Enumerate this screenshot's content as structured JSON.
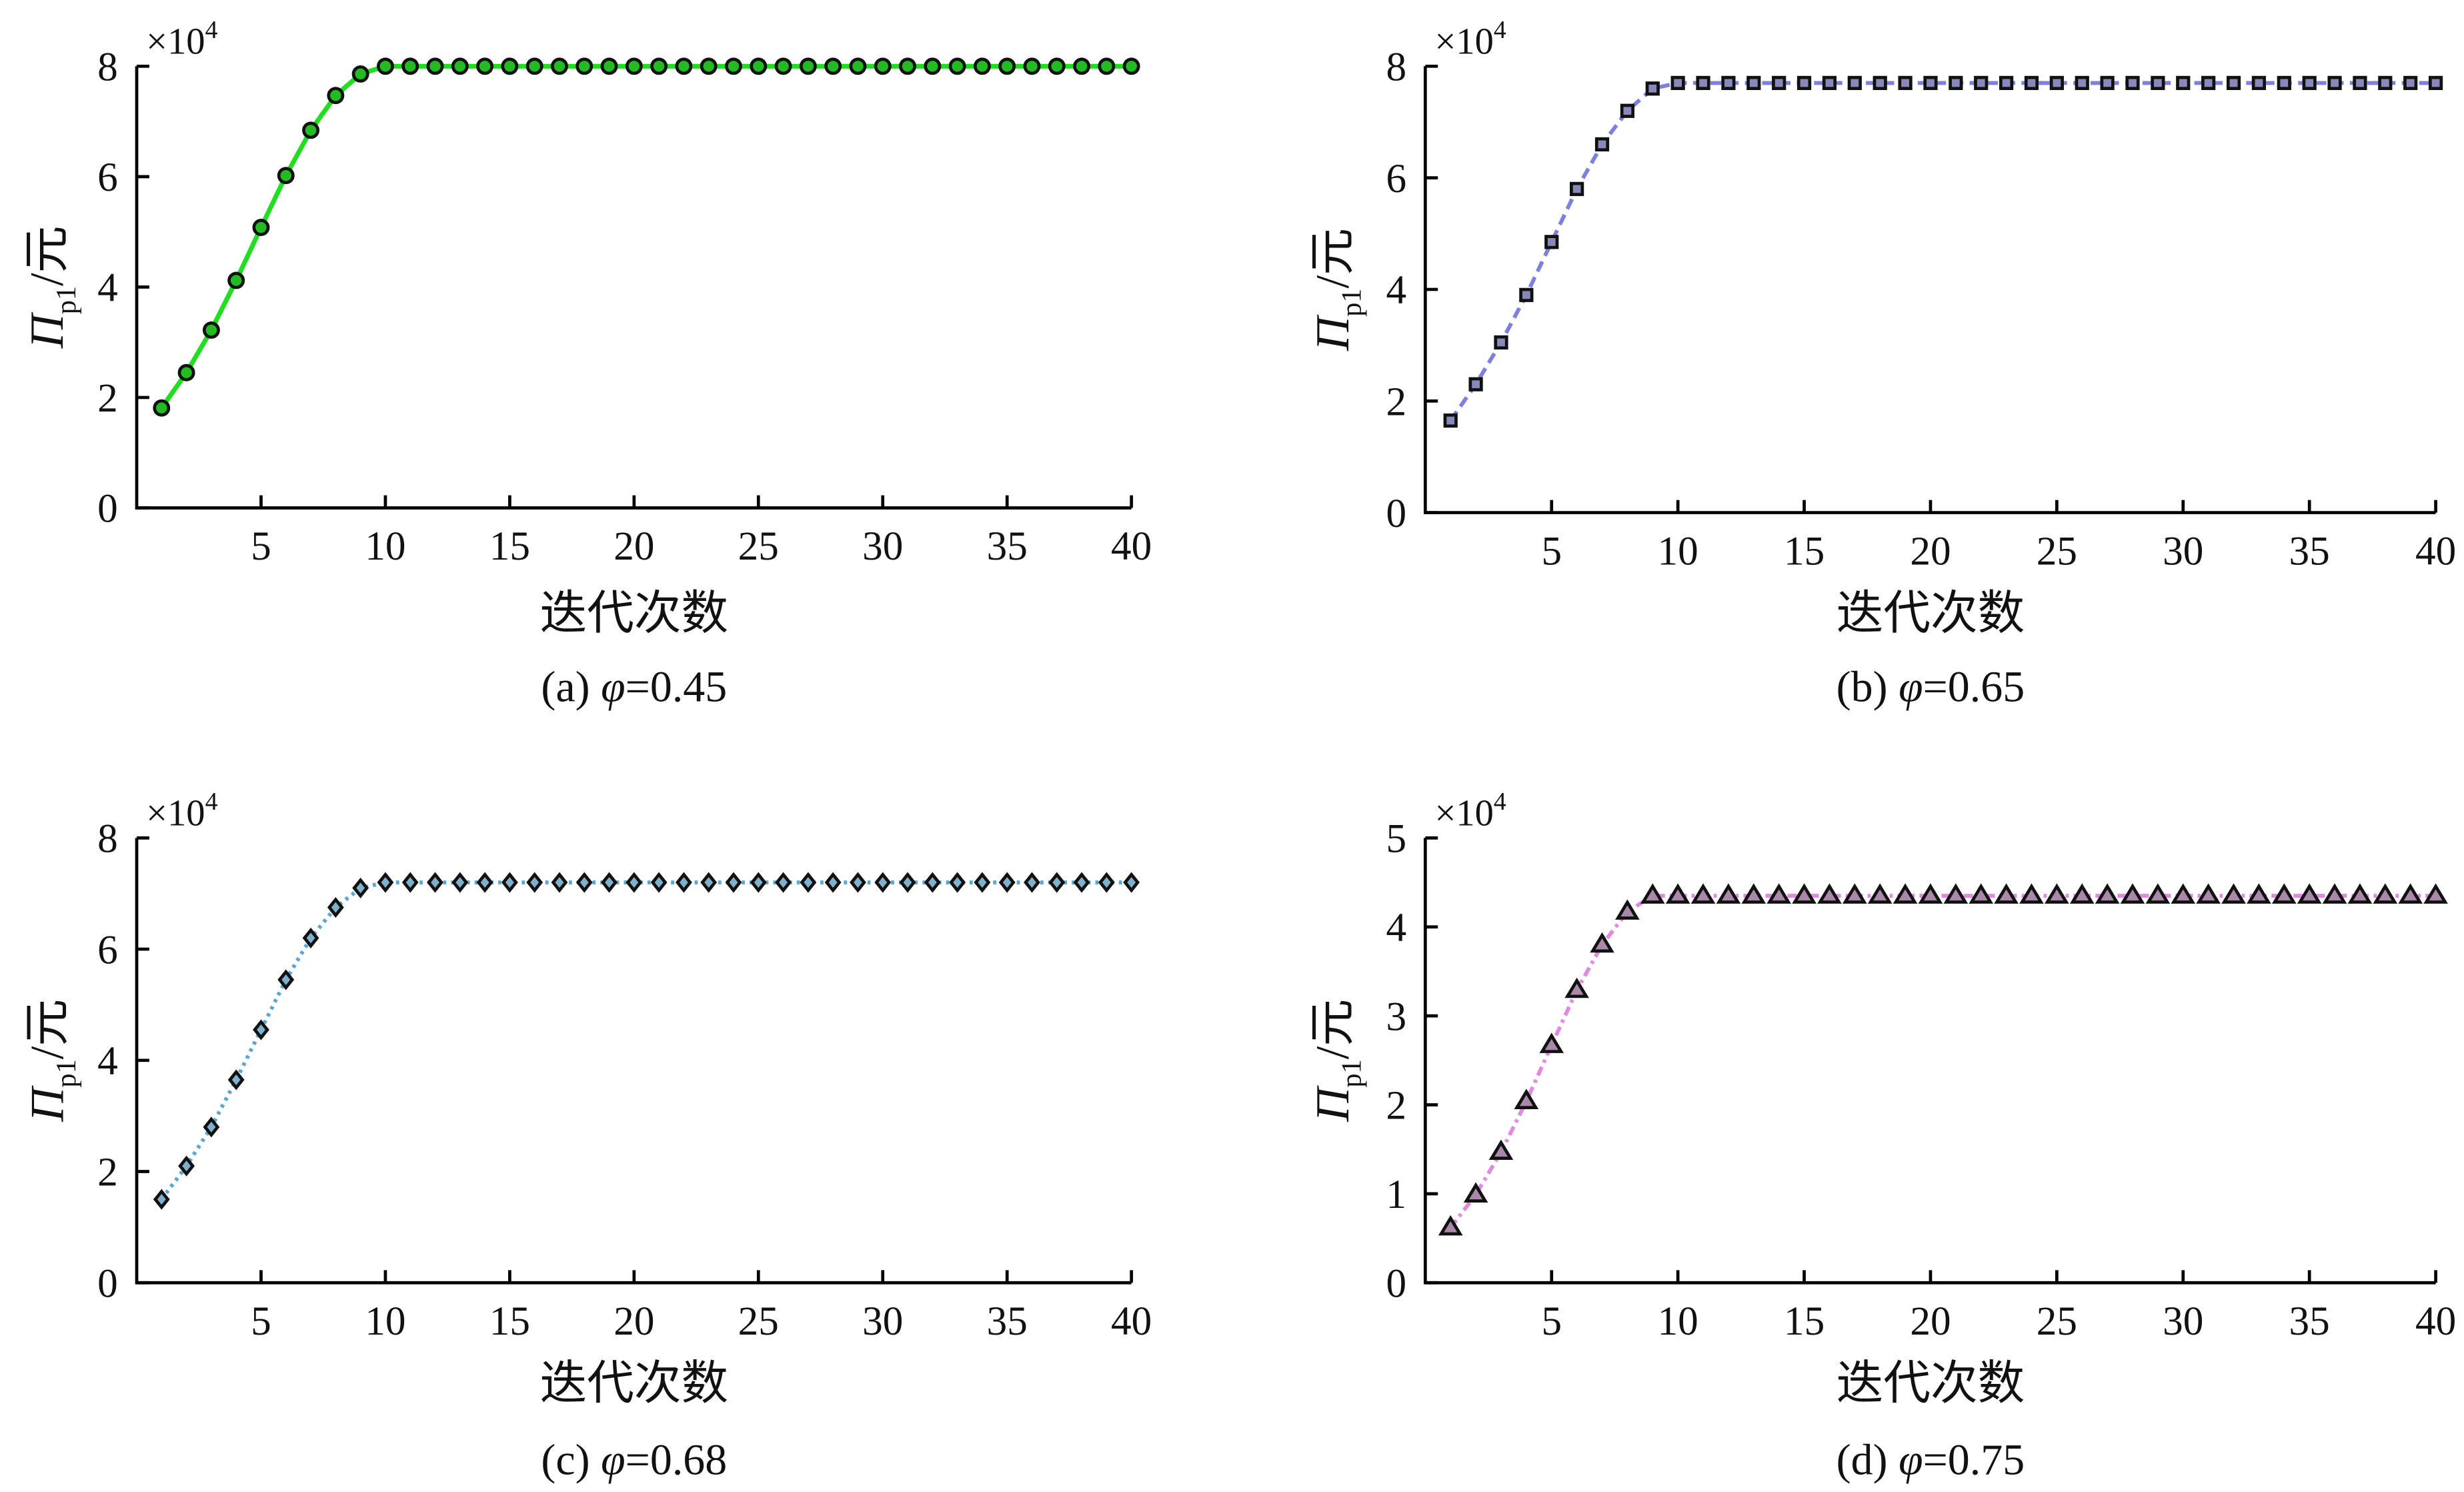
{
  "chart_data": [
    {
      "type": "line",
      "caption": {
        "prefix": "(a) ",
        "symbol": "φ",
        "value": "=0.45"
      },
      "xlabel": "迭代次数",
      "ylabel": {
        "main": "Π",
        "sub": "p1",
        "unit": "/元"
      },
      "multiplier": {
        "base": "×10",
        "exp": "4"
      },
      "xlim": [
        0,
        40
      ],
      "ylim": [
        0,
        8
      ],
      "xticks": [
        5,
        10,
        15,
        20,
        25,
        30,
        35,
        40
      ],
      "yticks": [
        0,
        2,
        4,
        6,
        8
      ],
      "marker": "circle",
      "line_style": "solid",
      "line_color": "#22dd22",
      "marker_fill": "#22bb22",
      "x": [
        1,
        2,
        3,
        4,
        5,
        6,
        7,
        8,
        9,
        10,
        11,
        12,
        13,
        14,
        15,
        16,
        17,
        18,
        19,
        20,
        21,
        22,
        23,
        24,
        25,
        26,
        27,
        28,
        29,
        30,
        31,
        32,
        33,
        34,
        35,
        36,
        37,
        38,
        39,
        40
      ],
      "y": [
        1.81,
        2.45,
        3.22,
        4.12,
        5.08,
        6.02,
        6.84,
        7.47,
        7.86,
        8.0,
        8.0,
        8.0,
        8.0,
        8.0,
        8.0,
        8.0,
        8.0,
        8.0,
        8.0,
        8.0,
        8.0,
        8.0,
        8.0,
        8.0,
        8.0,
        8.0,
        8.0,
        8.0,
        8.0,
        8.0,
        8.0,
        8.0,
        8.0,
        8.0,
        8.0,
        8.0,
        8.0,
        8.0,
        8.0,
        8.0
      ]
    },
    {
      "type": "line",
      "caption": {
        "prefix": "(b) ",
        "symbol": "φ",
        "value": "=0.65"
      },
      "xlabel": "迭代次数",
      "ylabel": {
        "main": "Π",
        "sub": "p1",
        "unit": "/元"
      },
      "multiplier": {
        "base": "×10",
        "exp": "4"
      },
      "xlim": [
        0,
        40
      ],
      "ylim": [
        0,
        8
      ],
      "xticks": [
        5,
        10,
        15,
        20,
        25,
        30,
        35,
        40
      ],
      "yticks": [
        0,
        2,
        4,
        6,
        8
      ],
      "marker": "square",
      "line_style": "dashed",
      "line_color": "#7f7fdd",
      "marker_fill": "#8888bb",
      "x": [
        1,
        2,
        3,
        4,
        5,
        6,
        7,
        8,
        9,
        10,
        11,
        12,
        13,
        14,
        15,
        16,
        17,
        18,
        19,
        20,
        21,
        22,
        23,
        24,
        25,
        26,
        27,
        28,
        29,
        30,
        31,
        32,
        33,
        34,
        35,
        36,
        37,
        38,
        39,
        40
      ],
      "y": [
        1.65,
        2.3,
        3.05,
        3.9,
        4.85,
        5.8,
        6.6,
        7.2,
        7.6,
        7.7,
        7.7,
        7.7,
        7.7,
        7.7,
        7.7,
        7.7,
        7.7,
        7.7,
        7.7,
        7.7,
        7.7,
        7.7,
        7.7,
        7.7,
        7.7,
        7.7,
        7.7,
        7.7,
        7.7,
        7.7,
        7.7,
        7.7,
        7.7,
        7.7,
        7.7,
        7.7,
        7.7,
        7.7,
        7.7,
        7.7
      ]
    },
    {
      "type": "line",
      "caption": {
        "prefix": "(c) ",
        "symbol": "φ",
        "value": "=0.68"
      },
      "xlabel": "迭代次数",
      "ylabel": {
        "main": "Π",
        "sub": "p1",
        "unit": "/元"
      },
      "multiplier": {
        "base": "×10",
        "exp": "4"
      },
      "xlim": [
        0,
        40
      ],
      "ylim": [
        0,
        8
      ],
      "xticks": [
        5,
        10,
        15,
        20,
        25,
        30,
        35,
        40
      ],
      "yticks": [
        0,
        2,
        4,
        6,
        8
      ],
      "marker": "diamond",
      "line_style": "dotted",
      "line_color": "#5aa8d0",
      "marker_fill": "#7fb0cc",
      "x": [
        1,
        2,
        3,
        4,
        5,
        6,
        7,
        8,
        9,
        10,
        11,
        12,
        13,
        14,
        15,
        16,
        17,
        18,
        19,
        20,
        21,
        22,
        23,
        24,
        25,
        26,
        27,
        28,
        29,
        30,
        31,
        32,
        33,
        34,
        35,
        36,
        37,
        38,
        39,
        40
      ],
      "y": [
        1.5,
        2.1,
        2.8,
        3.65,
        4.55,
        5.45,
        6.2,
        6.75,
        7.1,
        7.2,
        7.2,
        7.2,
        7.2,
        7.2,
        7.2,
        7.2,
        7.2,
        7.2,
        7.2,
        7.2,
        7.2,
        7.2,
        7.2,
        7.2,
        7.2,
        7.2,
        7.2,
        7.2,
        7.2,
        7.2,
        7.2,
        7.2,
        7.2,
        7.2,
        7.2,
        7.2,
        7.2,
        7.2,
        7.2,
        7.2
      ]
    },
    {
      "type": "line",
      "caption": {
        "prefix": "(d) ",
        "symbol": "φ",
        "value": "=0.75"
      },
      "xlabel": "迭代次数",
      "ylabel": {
        "main": "Π",
        "sub": "p1",
        "unit": "/元"
      },
      "multiplier": {
        "base": "×10",
        "exp": "4"
      },
      "xlim": [
        0,
        40
      ],
      "ylim": [
        0,
        5
      ],
      "xticks": [
        5,
        10,
        15,
        20,
        25,
        30,
        35,
        40
      ],
      "yticks": [
        0,
        1,
        2,
        3,
        4,
        5
      ],
      "marker": "triangle",
      "line_style": "dashdot",
      "line_color": "#e08ae0",
      "marker_fill": "#aa88aa",
      "x": [
        1,
        2,
        3,
        4,
        5,
        6,
        7,
        8,
        9,
        10,
        11,
        12,
        13,
        14,
        15,
        16,
        17,
        18,
        19,
        20,
        21,
        22,
        23,
        24,
        25,
        26,
        27,
        28,
        29,
        30,
        31,
        32,
        33,
        34,
        35,
        36,
        37,
        38,
        39,
        40
      ],
      "y": [
        0.62,
        0.99,
        1.47,
        2.04,
        2.67,
        3.29,
        3.8,
        4.17,
        4.35,
        4.35,
        4.35,
        4.35,
        4.35,
        4.35,
        4.35,
        4.35,
        4.35,
        4.35,
        4.35,
        4.35,
        4.35,
        4.35,
        4.35,
        4.35,
        4.35,
        4.35,
        4.35,
        4.35,
        4.35,
        4.35,
        4.35,
        4.35,
        4.35,
        4.35,
        4.35,
        4.35,
        4.35,
        4.35,
        4.35,
        4.35
      ]
    }
  ]
}
